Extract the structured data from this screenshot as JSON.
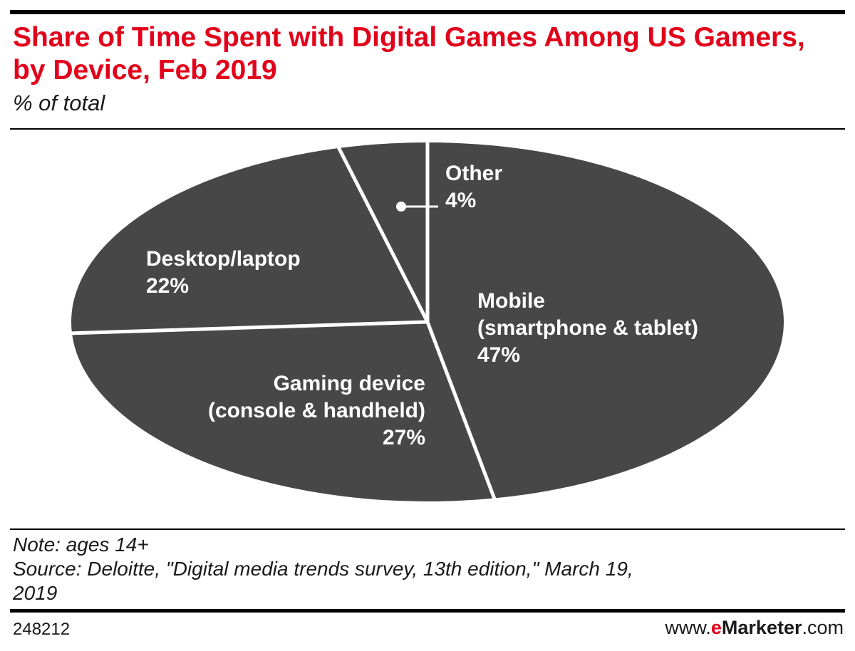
{
  "header": {
    "title": "Share of Time Spent with Digital Games Among US Gamers, by Device, Feb 2019",
    "subtitle": "% of total"
  },
  "chart_data": {
    "type": "pie",
    "slices": [
      {
        "label": "Mobile",
        "sublabel": "(smartphone & tablet)",
        "value": 47,
        "value_label": "47%"
      },
      {
        "label": "Gaming device",
        "sublabel": "(console & handheld)",
        "value": 27,
        "value_label": "27%"
      },
      {
        "label": "Desktop/laptop",
        "sublabel": "",
        "value": 22,
        "value_label": "22%"
      },
      {
        "label": "Other",
        "sublabel": "",
        "value": 4,
        "value_label": "4%"
      }
    ],
    "colors": {
      "slice_fill": "#474747",
      "divider": "#ffffff",
      "label_text": "#ffffff"
    },
    "start": "12 o'clock",
    "direction": "clockwise",
    "legend": "none"
  },
  "footer": {
    "note": "Note: ages 14+",
    "source_line1": "Source: Deloitte, \"Digital media trends survey, 13th edition,\" March 19,",
    "source_line2": "2019",
    "chart_id": "248212",
    "brand_prefix": "www.",
    "brand_e": "e",
    "brand_marketer": "Marketer",
    "brand_suffix": ".com"
  },
  "colors": {
    "title": "#e2001a",
    "text": "#1a1a1a",
    "rule": "#000000"
  }
}
